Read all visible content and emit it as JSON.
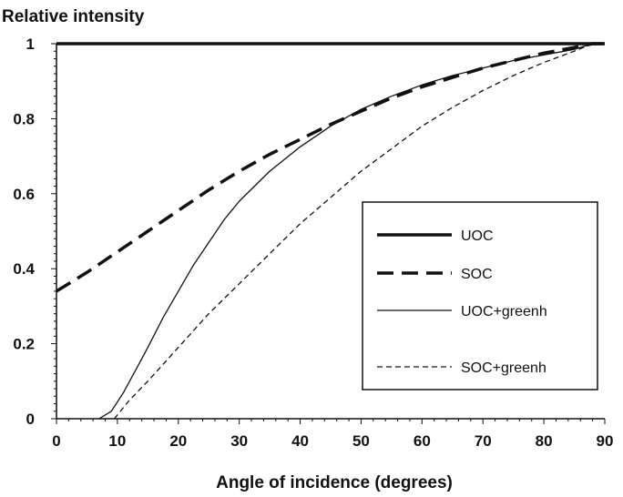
{
  "chart_data": {
    "type": "line",
    "title": "",
    "xlabel": "Angle of incidence (degrees)",
    "ylabel": "Relative intensity",
    "xlim": [
      0,
      90
    ],
    "ylim": [
      0,
      1
    ],
    "xticks": [
      0,
      10,
      20,
      30,
      40,
      50,
      60,
      70,
      80,
      90
    ],
    "yticks": [
      0,
      0.2,
      0.4,
      0.6,
      0.8,
      1
    ],
    "ytick_labels": [
      "0",
      "0.2",
      "0.4",
      "0.6",
      "0.8",
      "1"
    ],
    "grid": false,
    "legend_position": "bottom-right",
    "series": [
      {
        "name": "UOC",
        "style": "thick-solid",
        "x": [
          0,
          10,
          20,
          30,
          40,
          50,
          60,
          70,
          80,
          90
        ],
        "y": [
          1,
          1,
          1,
          1,
          1,
          1,
          1,
          1,
          1,
          1
        ]
      },
      {
        "name": "SOC",
        "style": "thick-dashed",
        "x": [
          0,
          5,
          10,
          15,
          20,
          25,
          30,
          35,
          40,
          45,
          50,
          55,
          60,
          65,
          70,
          75,
          80,
          85,
          88,
          90
        ],
        "y": [
          0.34,
          0.39,
          0.445,
          0.5,
          0.555,
          0.61,
          0.66,
          0.705,
          0.745,
          0.785,
          0.82,
          0.855,
          0.885,
          0.91,
          0.935,
          0.955,
          0.975,
          0.99,
          1,
          1
        ]
      },
      {
        "name": "UOC+greenh",
        "style": "thin-solid",
        "x": [
          7,
          9,
          11,
          13,
          15,
          17.5,
          20,
          22.5,
          25,
          27.5,
          30,
          35,
          40,
          45,
          50,
          55,
          60,
          65,
          70,
          75,
          80,
          85,
          88,
          90
        ],
        "y": [
          0,
          0.02,
          0.07,
          0.13,
          0.19,
          0.27,
          0.34,
          0.41,
          0.47,
          0.53,
          0.58,
          0.66,
          0.725,
          0.78,
          0.825,
          0.86,
          0.89,
          0.915,
          0.935,
          0.955,
          0.97,
          0.985,
          1,
          1
        ]
      },
      {
        "name": "SOC+greenh",
        "style": "thin-dashed",
        "x": [
          9.5,
          12,
          15,
          20,
          25,
          30,
          35,
          40,
          45,
          50,
          55,
          60,
          65,
          70,
          75,
          80,
          85,
          88,
          90
        ],
        "y": [
          0,
          0.05,
          0.1,
          0.19,
          0.28,
          0.36,
          0.44,
          0.52,
          0.59,
          0.66,
          0.72,
          0.78,
          0.83,
          0.875,
          0.915,
          0.95,
          0.98,
          1,
          1
        ]
      }
    ]
  }
}
